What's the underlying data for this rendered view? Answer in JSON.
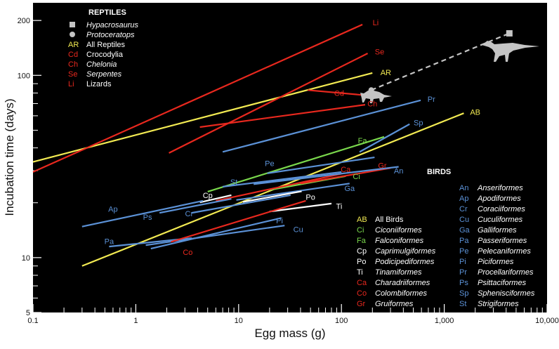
{
  "chart_data": {
    "type": "line",
    "xscale": "log",
    "yscale": "log",
    "xlim": [
      0.1,
      10000
    ],
    "ylim": [
      5,
      250
    ],
    "xlabel": "Egg mass (g)",
    "ylabel": "Incubation time (days)",
    "xticks": [
      {
        "value": 0.1,
        "label": "0.1"
      },
      {
        "value": 1,
        "label": "1"
      },
      {
        "value": 10,
        "label": "10"
      },
      {
        "value": 100,
        "label": "100"
      },
      {
        "value": 1000,
        "label": "1,000"
      },
      {
        "value": 10000,
        "label": "10,000"
      }
    ],
    "yticks": [
      {
        "value": 5,
        "label": "5"
      },
      {
        "value": 10,
        "label": "10"
      },
      {
        "value": 100,
        "label": "100"
      },
      {
        "value": 200,
        "label": "200"
      }
    ],
    "colors": {
      "reptile": "#e8281e",
      "all": "#f2ea52",
      "fa_ci": "#7ad84c",
      "bird": "#5b91d6",
      "cp": "#ffffff",
      "gray": "#c4c4c4",
      "background": "#000000"
    },
    "reptiles_heading": "REPTILES",
    "birds_heading": "BIRDS",
    "reptile_key": [
      {
        "abbr": "",
        "name": "Hypacrosaurus",
        "color": "gray",
        "italic": true,
        "marker": "square"
      },
      {
        "abbr": "",
        "name": "Protoceratops",
        "color": "gray",
        "italic": true,
        "marker": "circle"
      },
      {
        "abbr": "AR",
        "name": "All Reptiles",
        "color": "all",
        "italic": false
      },
      {
        "abbr": "Cd",
        "name": "Crocodylia",
        "color": "reptile",
        "italic": false
      },
      {
        "abbr": "Ch",
        "name": "Chelonia",
        "color": "reptile",
        "italic": true
      },
      {
        "abbr": "Se",
        "name": "Serpentes",
        "color": "reptile",
        "italic": true
      },
      {
        "abbr": "Li",
        "name": "Lizards",
        "color": "reptile",
        "italic": false
      }
    ],
    "bird_key_left": [
      {
        "abbr": "AB",
        "name": "All Birds",
        "color": "all",
        "italic": false
      },
      {
        "abbr": "Ci",
        "name": "Ciconiiformes",
        "color": "fa_ci",
        "italic": true
      },
      {
        "abbr": "Fa",
        "name": "Falconiformes",
        "color": "fa_ci",
        "italic": true
      },
      {
        "abbr": "Cp",
        "name": "Caprimulgiformes",
        "color": "cp",
        "italic": true
      },
      {
        "abbr": "Po",
        "name": "Podicipediformes",
        "color": "cp",
        "italic": true
      },
      {
        "abbr": "Ti",
        "name": "Tinamiformes",
        "color": "cp",
        "italic": true
      },
      {
        "abbr": "Ca",
        "name": "Charadriiformes",
        "color": "reptile",
        "italic": true
      },
      {
        "abbr": "Co",
        "name": "Colombiformes",
        "color": "reptile",
        "italic": true
      },
      {
        "abbr": "Gr",
        "name": "Gruiformes",
        "color": "reptile",
        "italic": true
      }
    ],
    "bird_key_right": [
      {
        "abbr": "An",
        "name": "Anseriformes",
        "color": "bird",
        "italic": true
      },
      {
        "abbr": "Ap",
        "name": "Apodiformes",
        "color": "bird",
        "italic": true
      },
      {
        "abbr": "Cr",
        "name": "Coraciiformes",
        "color": "bird",
        "italic": true
      },
      {
        "abbr": "Cu",
        "name": "Cuculiformes",
        "color": "bird",
        "italic": true
      },
      {
        "abbr": "Ga",
        "name": "Galliformes",
        "color": "bird",
        "italic": true
      },
      {
        "abbr": "Pa",
        "name": "Passeriformes",
        "color": "bird",
        "italic": true
      },
      {
        "abbr": "Pe",
        "name": "Pelecaniformes",
        "color": "bird",
        "italic": true
      },
      {
        "abbr": "Pi",
        "name": "Piciformes",
        "color": "bird",
        "italic": true
      },
      {
        "abbr": "Pr",
        "name": "Procellariformes",
        "color": "bird",
        "italic": true
      },
      {
        "abbr": "Ps",
        "name": "Psittaciformes",
        "color": "bird",
        "italic": true
      },
      {
        "abbr": "Sp",
        "name": "Sphenisciformes",
        "color": "bird",
        "italic": true
      },
      {
        "abbr": "St",
        "name": "Strigiformes",
        "color": "bird",
        "italic": true
      }
    ],
    "series": [
      {
        "name": "AR",
        "color": "all",
        "points": [
          [
            0.1,
            33.5
          ],
          [
            200,
            103
          ]
        ]
      },
      {
        "name": "Li",
        "color": "reptile",
        "points": [
          [
            0.1,
            29.5
          ],
          [
            160,
            190
          ]
        ]
      },
      {
        "name": "Se",
        "color": "reptile",
        "points": [
          [
            2.1,
            37.5
          ],
          [
            180,
            132
          ]
        ]
      },
      {
        "name": "Ch",
        "color": "reptile",
        "points": [
          [
            4.2,
            52
          ],
          [
            170,
            69
          ]
        ]
      },
      {
        "name": "Cd",
        "color": "reptile",
        "points": [
          [
            47,
            83
          ],
          [
            160,
            78
          ]
        ]
      },
      {
        "name": "AB",
        "color": "all",
        "points": [
          [
            0.3,
            9
          ],
          [
            1550,
            62
          ]
        ]
      },
      {
        "name": "Pr",
        "color": "bird",
        "points": [
          [
            7,
            38
          ],
          [
            590,
            73
          ]
        ]
      },
      {
        "name": "Sp",
        "color": "bird",
        "points": [
          [
            150,
            38
          ],
          [
            460,
            54
          ]
        ]
      },
      {
        "name": "Fa",
        "color": "fa_ci",
        "points": [
          [
            5,
            23
          ],
          [
            260,
            46
          ]
        ]
      },
      {
        "name": "Ci",
        "color": "fa_ci",
        "points": [
          [
            20,
            23.5
          ],
          [
            110,
            28
          ]
        ]
      },
      {
        "name": "Pe",
        "color": "bird",
        "points": [
          [
            19,
            29
          ],
          [
            210,
            35.5
          ]
        ]
      },
      {
        "name": "St",
        "color": "bird",
        "points": [
          [
            7,
            24.5
          ],
          [
            100,
            29.5
          ]
        ]
      },
      {
        "name": "Ca",
        "color": "reptile",
        "points": [
          [
            6,
            20.5
          ],
          [
            105,
            29
          ]
        ]
      },
      {
        "name": "Gr",
        "color": "reptile",
        "points": [
          [
            40,
            25.5
          ],
          [
            300,
            31
          ]
        ]
      },
      {
        "name": "An",
        "color": "bird",
        "points": [
          [
            14,
            25.3
          ],
          [
            360,
            31.5
          ]
        ]
      },
      {
        "name": "Ga",
        "color": "bird",
        "points": [
          [
            9.5,
            20.7
          ],
          [
            120,
            25.5
          ]
        ]
      },
      {
        "name": "Cp",
        "color": "cp",
        "points": [
          [
            4.2,
            20.1
          ],
          [
            8.5,
            22
          ]
        ]
      },
      {
        "name": "Po",
        "color": "cp",
        "points": [
          [
            11,
            20.2
          ],
          [
            41,
            23.1
          ]
        ]
      },
      {
        "name": "Ti",
        "color": "cp",
        "points": [
          [
            20,
            17.9
          ],
          [
            80,
            19.8
          ]
        ]
      },
      {
        "name": "Ap",
        "color": "bird",
        "points": [
          [
            0.3,
            14.8
          ],
          [
            4.5,
            20.5
          ]
        ]
      },
      {
        "name": "Ps",
        "color": "bird",
        "points": [
          [
            1.7,
            17.6
          ],
          [
            8.5,
            21
          ]
        ]
      },
      {
        "name": "Cr",
        "color": "bird",
        "points": [
          [
            3.5,
            17.6
          ],
          [
            32,
            22
          ]
        ]
      },
      {
        "name": "Pi",
        "color": "bird",
        "points": [
          [
            1.4,
            11.2
          ],
          [
            26,
            16.5
          ]
        ]
      },
      {
        "name": "Cu",
        "color": "bird",
        "points": [
          [
            1.25,
            11.7
          ],
          [
            28,
            15
          ]
        ]
      },
      {
        "name": "Pa",
        "color": "bird",
        "points": [
          [
            0.55,
            11.5
          ],
          [
            3.5,
            12.8
          ]
        ]
      },
      {
        "name": "Co",
        "color": "reptile",
        "points": [
          [
            2.2,
            12.2
          ],
          [
            45,
            20.5
          ]
        ]
      }
    ],
    "dinosaur_extension": {
      "color": "gray",
      "points": [
        [
          195,
          83
        ],
        [
          4300,
          170
        ]
      ]
    },
    "annotations": [
      {
        "text": "AR",
        "color": "all",
        "at": [
          270,
          104
        ]
      },
      {
        "text": "Li",
        "color": "reptile",
        "at": [
          215,
          195
        ]
      },
      {
        "text": "Se",
        "color": "reptile",
        "at": [
          235,
          135
        ]
      },
      {
        "text": "Ch",
        "color": "reptile",
        "at": [
          200,
          70
        ]
      },
      {
        "text": "Cd",
        "color": "reptile",
        "at": [
          95,
          80
        ]
      },
      {
        "text": "AB",
        "color": "all",
        "at": [
          2000,
          63
        ]
      },
      {
        "text": "Pr",
        "color": "bird",
        "at": [
          750,
          74
        ]
      },
      {
        "text": "Sp",
        "color": "bird",
        "at": [
          560,
          55
        ]
      },
      {
        "text": "Fa",
        "color": "fa_ci",
        "at": [
          160,
          44
        ]
      },
      {
        "text": "Ci",
        "color": "fa_ci",
        "at": [
          140,
          28
        ]
      },
      {
        "text": "Pe",
        "color": "bird",
        "at": [
          20,
          33
        ]
      },
      {
        "text": "St",
        "color": "bird",
        "at": [
          9,
          26
        ]
      },
      {
        "text": "Ca",
        "color": "reptile",
        "at": [
          110,
          30.5
        ]
      },
      {
        "text": "Gr",
        "color": "reptile",
        "at": [
          250,
          32
        ]
      },
      {
        "text": "An",
        "color": "bird",
        "at": [
          360,
          30
        ]
      },
      {
        "text": "Ga",
        "color": "bird",
        "at": [
          120,
          24
        ]
      },
      {
        "text": "Cp",
        "color": "cp",
        "at": [
          5,
          22
        ]
      },
      {
        "text": "Po",
        "color": "cp",
        "at": [
          50,
          21.5
        ]
      },
      {
        "text": "Ti",
        "color": "cp",
        "at": [
          95,
          19.2
        ]
      },
      {
        "text": "Ap",
        "color": "bird",
        "at": [
          0.6,
          18.5
        ]
      },
      {
        "text": "Ps",
        "color": "bird",
        "at": [
          1.3,
          16.7
        ]
      },
      {
        "text": "Cr",
        "color": "bird",
        "at": [
          3.3,
          17.5
        ]
      },
      {
        "text": "Pi",
        "color": "bird",
        "at": [
          25,
          16
        ]
      },
      {
        "text": "Cu",
        "color": "bird",
        "at": [
          38,
          14.3
        ]
      },
      {
        "text": "Pa",
        "color": "bird",
        "at": [
          0.55,
          12.3
        ]
      },
      {
        "text": "Co",
        "color": "reptile",
        "at": [
          3.2,
          10.7
        ]
      }
    ]
  }
}
